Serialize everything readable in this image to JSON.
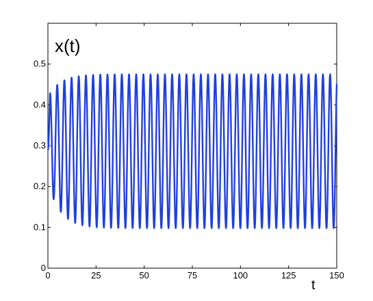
{
  "chart_data": {
    "type": "line",
    "title": "",
    "xlabel": "t",
    "ylabel": "x(t)",
    "xlim": [
      0,
      150
    ],
    "ylim": [
      0,
      0.6
    ],
    "xticks": [
      0,
      25,
      50,
      75,
      100,
      125,
      150
    ],
    "yticks": [
      0,
      0.1,
      0.2,
      0.3,
      0.4,
      0.5
    ],
    "xtick_labels": [
      "0",
      "25",
      "50",
      "75",
      "100",
      "125",
      "150"
    ],
    "ytick_labels": [
      "0",
      "0.1",
      "0.2",
      "0.3",
      "0.4",
      "0.5"
    ],
    "grid": false,
    "series": [
      {
        "color": "#1f3fe0",
        "initial_value": 0.29,
        "period": 3.73,
        "first_peak_t": 1.1,
        "steady_max": 0.475,
        "steady_min": 0.098,
        "initial_max": 0.42,
        "initial_min": 0.21,
        "settling_time_constant": 6.5
      }
    ]
  }
}
